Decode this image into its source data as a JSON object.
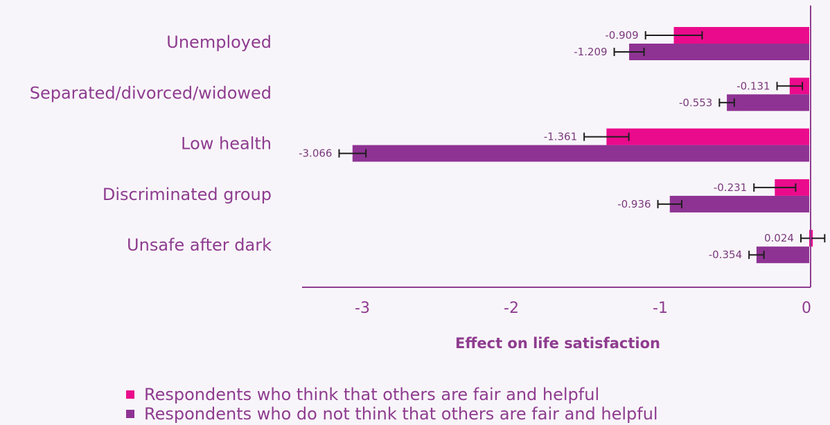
{
  "chart_data": {
    "type": "bar",
    "orientation": "horizontal",
    "categories": [
      "Unemployed",
      "Separated/divorced/widowed",
      "Low health",
      "Discriminated group",
      "Unsafe after dark"
    ],
    "series": [
      {
        "name": "Respondents who think that others are fair and helpful",
        "color": "#ea0b8c",
        "values": [
          -0.909,
          -0.131,
          -1.361,
          -0.231,
          0.024
        ],
        "value_labels": [
          "-0.909",
          "-0.131",
          "-1.361",
          "-0.231",
          "0.024"
        ],
        "error": [
          0.19,
          0.085,
          0.15,
          0.14,
          0.08
        ]
      },
      {
        "name": "Respondents who do not think that others are fair and helpful",
        "color": "#8e3393",
        "values": [
          -1.209,
          -0.553,
          -3.066,
          -0.936,
          -0.354
        ],
        "value_labels": [
          "-1.209",
          "-0.553",
          "-3.066",
          "-0.936",
          "-0.354"
        ],
        "error": [
          0.1,
          0.05,
          0.09,
          0.08,
          0.05
        ]
      }
    ],
    "xlabel": "Effect on life satisfaction",
    "xlim": [
      -3.4,
      0.1
    ],
    "xticks": [
      -3,
      -2,
      -1,
      0
    ],
    "xtick_labels": [
      "-3",
      "-2",
      "-1",
      "0"
    ],
    "grid": false,
    "legend_position": "bottom"
  }
}
